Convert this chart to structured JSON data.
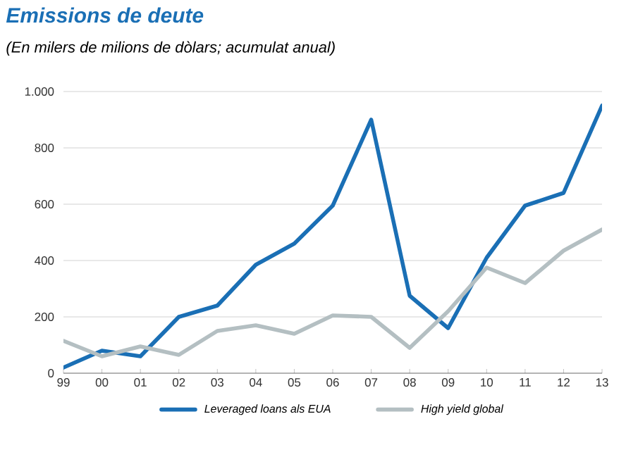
{
  "chart_data": {
    "type": "line",
    "title": "Emissions de deute",
    "subtitle": "(En milers de milions de dòlars; acumulat anual)",
    "categories": [
      "99",
      "00",
      "01",
      "02",
      "03",
      "04",
      "05",
      "06",
      "07",
      "08",
      "09",
      "10",
      "11",
      "12",
      "13"
    ],
    "series": [
      {
        "name": "Leveraged loans als EUA",
        "color": "#1a6fb5",
        "values": [
          20,
          80,
          60,
          200,
          240,
          385,
          460,
          595,
          900,
          275,
          160,
          410,
          595,
          640,
          950
        ]
      },
      {
        "name": "High yield global",
        "color": "#b4bfc2",
        "values": [
          115,
          60,
          95,
          65,
          150,
          170,
          140,
          205,
          200,
          90,
          220,
          375,
          320,
          435,
          510
        ]
      }
    ],
    "ylim": [
      0,
      1000
    ],
    "yticks": [
      0,
      200,
      400,
      600,
      800,
      {
        "value": 1000,
        "label": "1.000"
      }
    ],
    "grid": "y",
    "legend": "bottom"
  }
}
